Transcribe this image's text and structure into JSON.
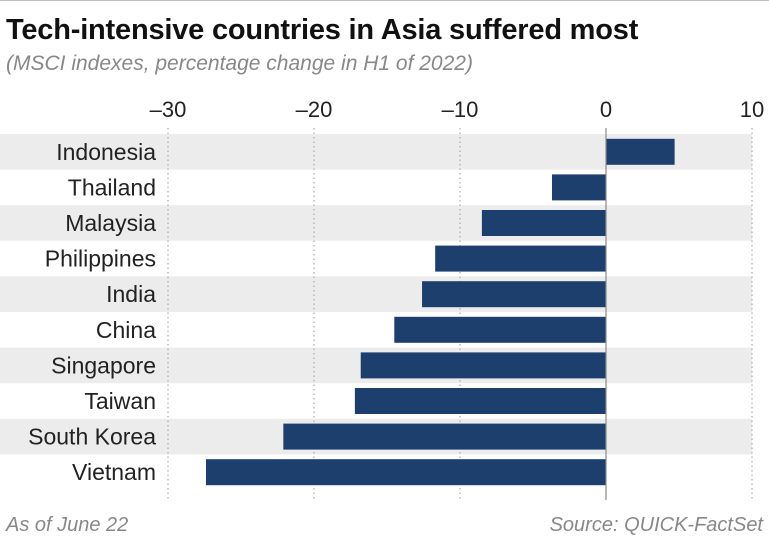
{
  "chart_data": {
    "type": "bar",
    "orientation": "horizontal",
    "title": "Tech-intensive countries in Asia suffered most",
    "subtitle": "(MSCI indexes, percentage change in H1 of 2022)",
    "categories": [
      "Indonesia",
      "Thailand",
      "Malaysia",
      "Philippines",
      "India",
      "China",
      "Singapore",
      "Taiwan",
      "South Korea",
      "Vietnam"
    ],
    "values": [
      4.7,
      -3.7,
      -8.5,
      -11.7,
      -12.6,
      -14.5,
      -16.8,
      -17.2,
      -22.1,
      -27.4
    ],
    "xlim": [
      -30,
      10
    ],
    "xticks": [
      -30,
      -20,
      -10,
      0,
      10
    ],
    "xtick_labels": [
      "–30",
      "–20",
      "–10",
      "0",
      "10"
    ],
    "xlabel": "",
    "ylabel": "",
    "grid": true,
    "bar_color": "#1c3f6e",
    "band_color": "#ececec"
  },
  "footer": {
    "note": "As of June 22",
    "source": "Source: QUICK-FactSet"
  }
}
